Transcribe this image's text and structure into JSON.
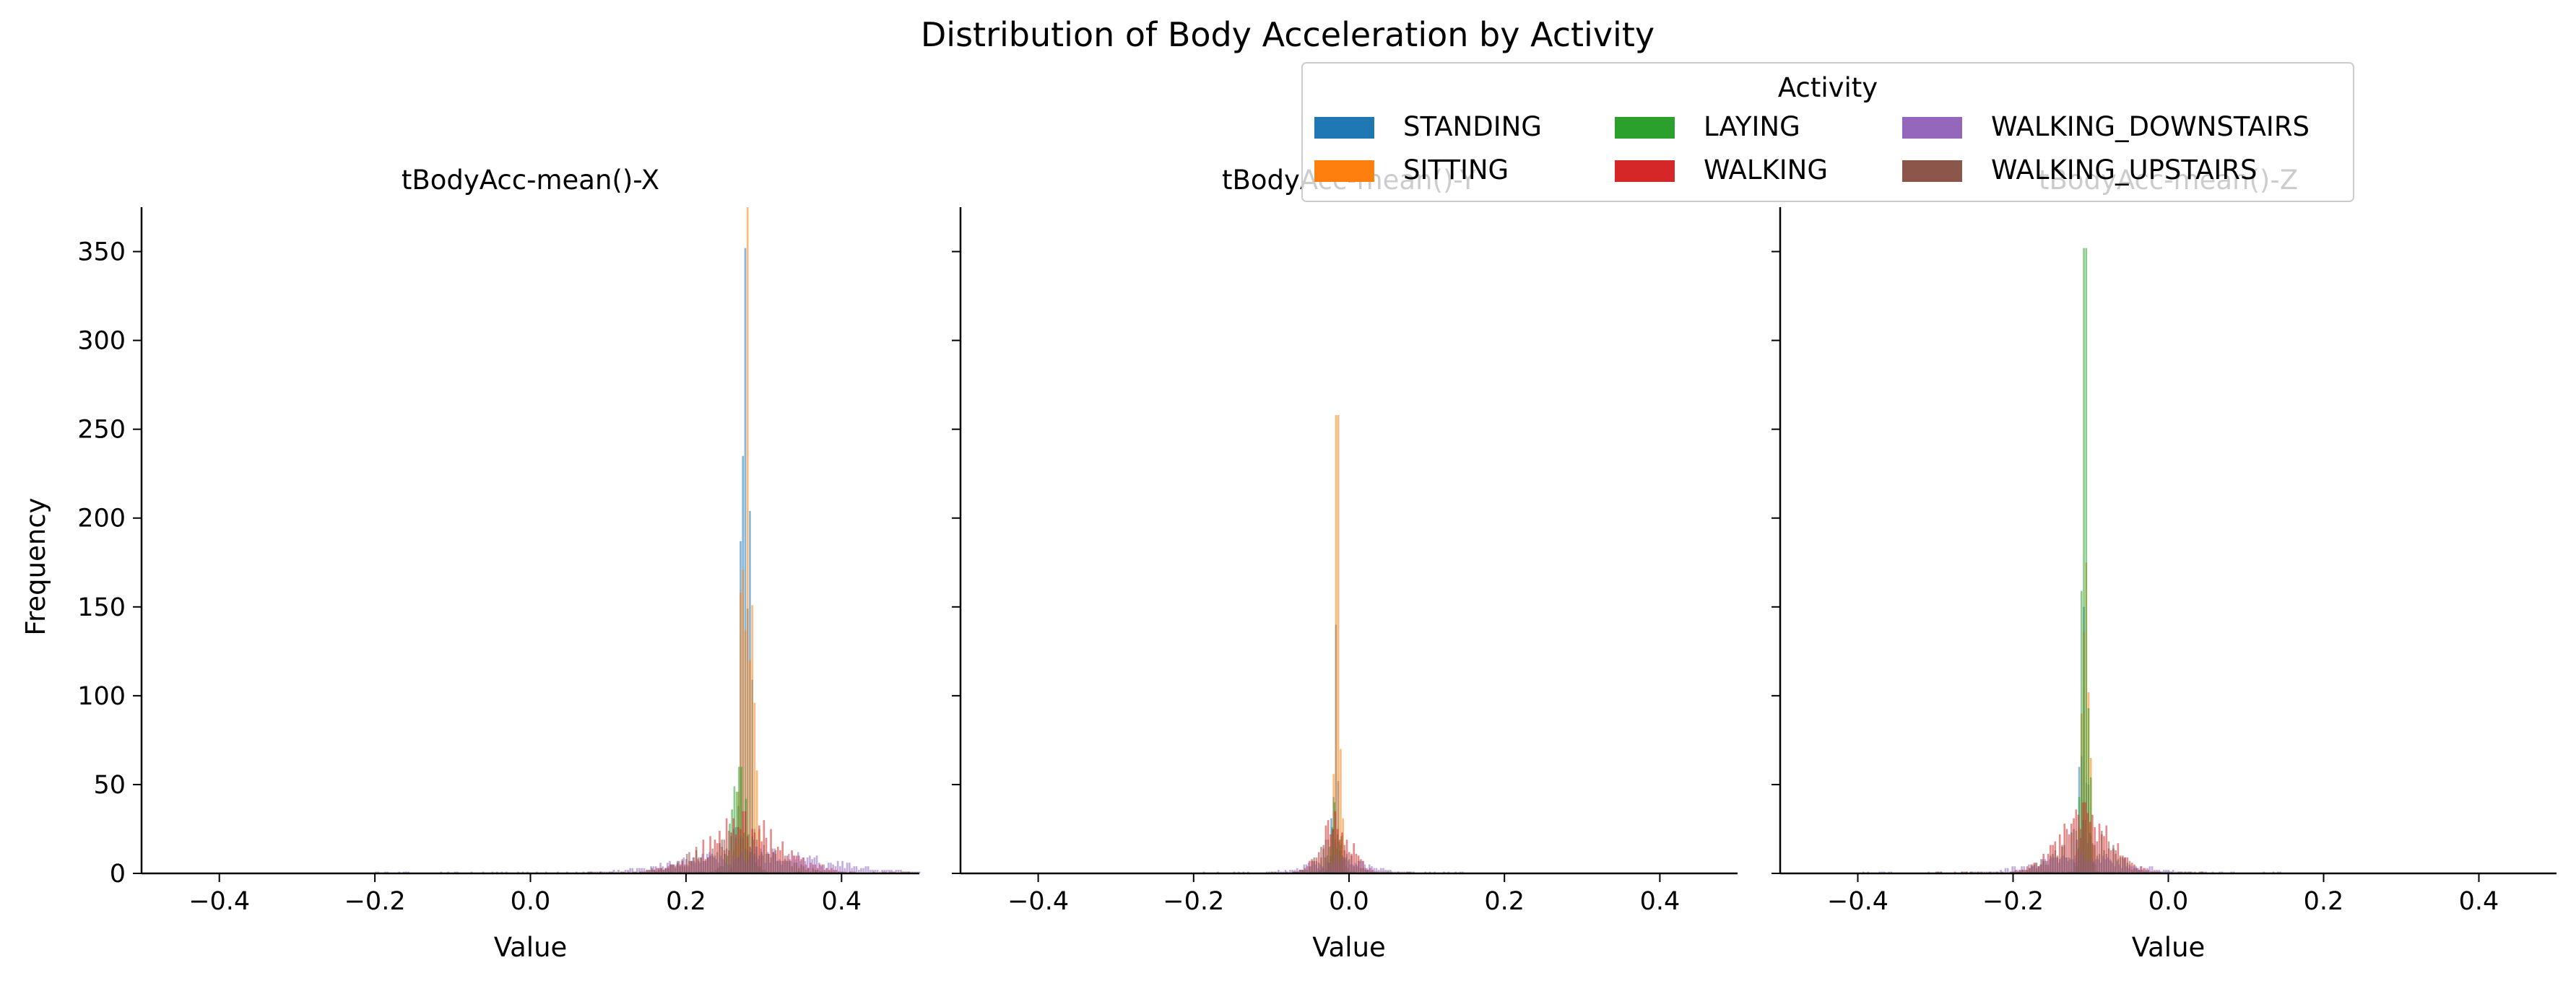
{
  "figure": {
    "title": "Distribution of Body Acceleration by Activity",
    "ylabel": "Frequency"
  },
  "legend": {
    "title": "Activity",
    "items": [
      {
        "label": "STANDING",
        "color": "#1f77b4"
      },
      {
        "label": "SITTING",
        "color": "#ff7f0e"
      },
      {
        "label": "LAYING",
        "color": "#2ca02c"
      },
      {
        "label": "WALKING",
        "color": "#d62728"
      },
      {
        "label": "WALKING_DOWNSTAIRS",
        "color": "#9467bd"
      },
      {
        "label": "WALKING_UPSTAIRS",
        "color": "#8c564b"
      }
    ]
  },
  "chart_data": [
    {
      "type": "histogram",
      "title": "tBodyAcc-mean()-X",
      "xlabel": "Value",
      "ylabel": "Frequency",
      "xlim": [
        -0.5,
        0.5
      ],
      "ylim": [
        0,
        375
      ],
      "xticks": [
        "−0.4",
        "−0.2",
        "0.0",
        "0.2",
        "0.4"
      ],
      "yticks": [
        "0",
        "50",
        "100",
        "150",
        "200",
        "250",
        "300",
        "350"
      ],
      "series": [
        {
          "name": "STANDING",
          "center": 0.277,
          "spread": 0.006,
          "peak": 352,
          "range": [
            0.2,
            0.35
          ]
        },
        {
          "name": "SITTING",
          "center": 0.279,
          "spread": 0.007,
          "peak": 375,
          "range": [
            0.2,
            0.35
          ]
        },
        {
          "name": "LAYING",
          "center": 0.27,
          "spread": 0.012,
          "peak": 60,
          "range": [
            0.15,
            0.4
          ]
        },
        {
          "name": "WALKING",
          "center": 0.275,
          "spread": 0.05,
          "peak": 35,
          "range": [
            0.05,
            0.5
          ]
        },
        {
          "name": "WALKING_DOWNSTAIRS",
          "center": 0.29,
          "spread": 0.09,
          "peak": 15,
          "range": [
            -0.2,
            0.5
          ]
        },
        {
          "name": "WALKING_UPSTAIRS",
          "center": 0.262,
          "spread": 0.05,
          "peak": 25,
          "range": [
            0.05,
            0.5
          ]
        }
      ]
    },
    {
      "type": "histogram",
      "title": "tBodyAcc-mean()-Y",
      "xlabel": "Value",
      "xlim": [
        -0.5,
        0.5
      ],
      "ylim": [
        0,
        375
      ],
      "xticks": [
        "−0.4",
        "−0.2",
        "0.0",
        "0.2",
        "0.4"
      ],
      "yticks": [
        "0",
        "50",
        "100",
        "150",
        "200",
        "250",
        "300",
        "350"
      ],
      "series": [
        {
          "name": "STANDING",
          "center": -0.017,
          "spread": 0.004,
          "peak": 140,
          "range": [
            -0.06,
            0.03
          ]
        },
        {
          "name": "SITTING",
          "center": -0.015,
          "spread": 0.004,
          "peak": 258,
          "range": [
            -0.06,
            0.03
          ]
        },
        {
          "name": "LAYING",
          "center": -0.018,
          "spread": 0.008,
          "peak": 40,
          "range": [
            -0.08,
            0.05
          ]
        },
        {
          "name": "WALKING",
          "center": -0.017,
          "spread": 0.02,
          "peak": 35,
          "range": [
            -0.1,
            0.08
          ]
        },
        {
          "name": "WALKING_DOWNSTAIRS",
          "center": -0.015,
          "spread": 0.04,
          "peak": 10,
          "range": [
            -0.2,
            0.15
          ]
        },
        {
          "name": "WALKING_UPSTAIRS",
          "center": -0.02,
          "spread": 0.02,
          "peak": 25,
          "range": [
            -0.1,
            0.08
          ]
        }
      ]
    },
    {
      "type": "histogram",
      "title": "tBodyAcc-mean()-Z",
      "xlabel": "Value",
      "xlim": [
        -0.5,
        0.5
      ],
      "ylim": [
        0,
        375
      ],
      "xticks": [
        "−0.4",
        "−0.2",
        "0.0",
        "0.2",
        "0.4"
      ],
      "yticks": [
        "0",
        "50",
        "100",
        "150",
        "200",
        "250",
        "300",
        "350"
      ],
      "series": [
        {
          "name": "STANDING",
          "center": -0.108,
          "spread": 0.005,
          "peak": 150,
          "range": [
            -0.2,
            0.0
          ]
        },
        {
          "name": "SITTING",
          "center": -0.106,
          "spread": 0.005,
          "peak": 175,
          "range": [
            -0.2,
            0.0
          ]
        },
        {
          "name": "LAYING",
          "center": -0.107,
          "spread": 0.004,
          "peak": 352,
          "range": [
            -0.2,
            0.0
          ]
        },
        {
          "name": "WALKING",
          "center": -0.108,
          "spread": 0.035,
          "peak": 40,
          "range": [
            -0.3,
            0.05
          ]
        },
        {
          "name": "WALKING_DOWNSTAIRS",
          "center": -0.11,
          "spread": 0.06,
          "peak": 12,
          "range": [
            -0.4,
            0.15
          ]
        },
        {
          "name": "WALKING_UPSTAIRS",
          "center": -0.108,
          "spread": 0.035,
          "peak": 30,
          "range": [
            -0.3,
            0.05
          ]
        }
      ]
    }
  ]
}
